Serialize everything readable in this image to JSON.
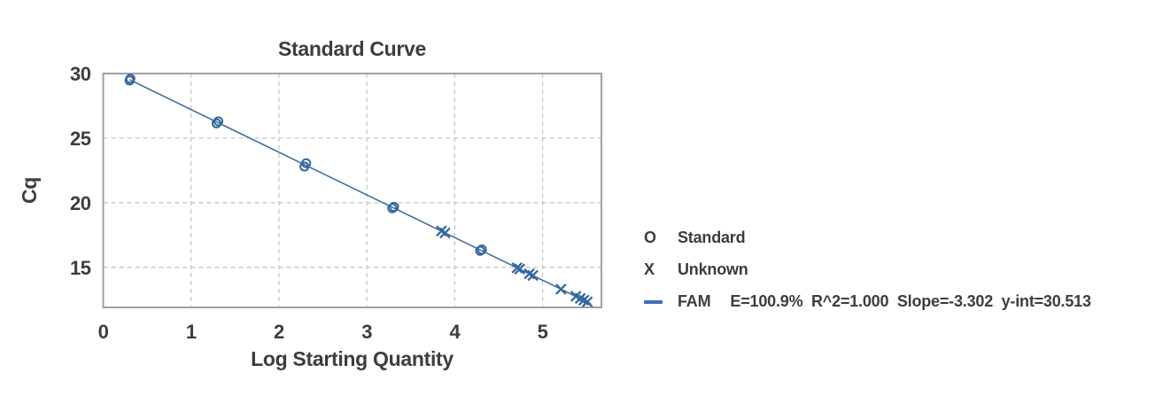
{
  "colors": {
    "series_blue": "#35689d",
    "legend_dash_blue": "#3d6fb3",
    "text": "#3d3d3d",
    "grid": "#c2c2c2",
    "plot_border": "#a0a0a0",
    "background": "#ffffff"
  },
  "chart_data": {
    "type": "scatter",
    "title": "Standard Curve",
    "xlabel": "Log Starting Quantity",
    "ylabel": "Cq",
    "xlim": [
      0,
      5.67
    ],
    "ylim": [
      11.9,
      30
    ],
    "x_ticks": [
      0,
      1,
      2,
      3,
      4,
      5
    ],
    "y_ticks": [
      15,
      20,
      25,
      30
    ],
    "grid": "dashed",
    "legend_position": "right-of-plot",
    "series": [
      {
        "name": "Standard",
        "marker": "circle",
        "points": [
          [
            0.3,
            29.46
          ],
          [
            0.31,
            29.6
          ],
          [
            1.29,
            26.14
          ],
          [
            1.31,
            26.3
          ],
          [
            2.29,
            22.8
          ],
          [
            2.31,
            23.06
          ],
          [
            3.29,
            19.58
          ],
          [
            3.31,
            19.68
          ],
          [
            4.29,
            16.28
          ],
          [
            4.31,
            16.38
          ]
        ]
      },
      {
        "name": "Unknown",
        "marker": "x",
        "points": [
          [
            3.85,
            17.82
          ],
          [
            3.89,
            17.66
          ],
          [
            4.71,
            14.96
          ],
          [
            4.74,
            14.87
          ],
          [
            4.85,
            14.5
          ],
          [
            4.89,
            14.37
          ],
          [
            5.21,
            13.31
          ],
          [
            5.38,
            12.76
          ],
          [
            5.43,
            12.6
          ],
          [
            5.47,
            12.46
          ],
          [
            5.51,
            12.33
          ]
        ]
      },
      {
        "name": "FAM",
        "type": "line",
        "slope": -3.302,
        "y_intercept": 30.513,
        "efficiency_pct": 100.9,
        "r_squared": 1.0,
        "x_start": 0.3,
        "x_end": 5.55
      }
    ]
  },
  "legend": {
    "items": [
      {
        "symbol": "O",
        "label": "Standard"
      },
      {
        "symbol": "X",
        "label": "Unknown"
      },
      {
        "symbol": "line",
        "label": "FAM",
        "stats": "E=100.9%  R^2=1.000  Slope=-3.302  y-int=30.513"
      }
    ]
  }
}
